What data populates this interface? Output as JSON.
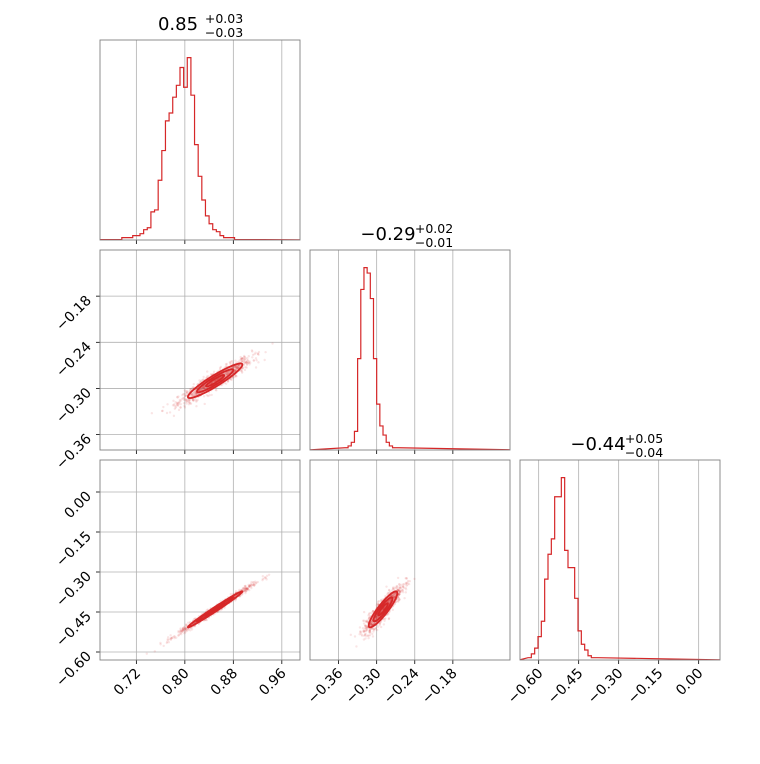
{
  "chart_data": {
    "type": "corner",
    "color": "#d62728",
    "grid": true,
    "panels": [
      {
        "id": "p00",
        "row": 0,
        "col": 0,
        "kind": "hist",
        "xlim": [
          0.66,
          0.99
        ],
        "title_value": "0.85",
        "title_plus": "+0.03",
        "title_minus": "−0.03",
        "bin_start": 0.66,
        "bin_width": 0.006,
        "counts": [
          0,
          0,
          0,
          0,
          0,
          0,
          1,
          1,
          1,
          2,
          2,
          3,
          5,
          6,
          14,
          15,
          30,
          45,
          60,
          64,
          72,
          78,
          87,
          77,
          92,
          73,
          48,
          32,
          20,
          12,
          8,
          5,
          4,
          2,
          1,
          1,
          1,
          0,
          0,
          0,
          0,
          0,
          0,
          0,
          0
        ]
      },
      {
        "id": "p11",
        "row": 1,
        "col": 1,
        "kind": "hist",
        "xlim": [
          -0.405,
          -0.09
        ],
        "title_value": "−0.29",
        "title_plus": "+0.02",
        "title_minus": "−0.01",
        "bin_start": -0.35,
        "bin_width": 0.005,
        "counts": [
          1,
          2,
          4,
          10,
          50,
          88,
          100,
          97,
          83,
          50,
          25,
          13,
          8,
          4,
          2,
          1,
          1
        ]
      },
      {
        "id": "p22",
        "row": 2,
        "col": 2,
        "kind": "hist",
        "xlim": [
          -0.67,
          0.08
        ],
        "title_value": "−0.44",
        "title_plus": "+0.05",
        "title_minus": "−0.04",
        "bin_start": -0.64,
        "bin_width": 0.0125,
        "counts": [
          1,
          3,
          6,
          12,
          20,
          42,
          55,
          63,
          85,
          85,
          95,
          57,
          48,
          48,
          32,
          15,
          8,
          5,
          2,
          1,
          1
        ]
      },
      {
        "id": "p10",
        "row": 1,
        "col": 0,
        "kind": "scatter",
        "xlim": [
          0.66,
          0.99
        ],
        "ylim": [
          -0.38,
          -0.12
        ],
        "yticks": [
          "−0.18",
          "−0.24",
          "−0.30",
          "−0.36"
        ],
        "ytick_values": [
          -0.18,
          -0.24,
          -0.3,
          -0.36
        ]
      },
      {
        "id": "p20",
        "row": 2,
        "col": 0,
        "kind": "scatter",
        "xlim": [
          0.66,
          0.99
        ],
        "ylim": [
          -0.63,
          0.12
        ],
        "xticks": [
          "0.72",
          "0.80",
          "0.88",
          "0.96"
        ],
        "xtick_values": [
          0.72,
          0.8,
          0.88,
          0.96
        ],
        "yticks": [
          "0.00",
          "−0.15",
          "−0.30",
          "−0.45",
          "−0.60"
        ],
        "ytick_values": [
          0.0,
          -0.15,
          -0.3,
          -0.45,
          -0.6
        ]
      },
      {
        "id": "p21",
        "row": 2,
        "col": 1,
        "kind": "scatter",
        "xlim": [
          -0.405,
          -0.09
        ],
        "ylim": [
          -0.63,
          0.12
        ],
        "xticks": [
          "−0.36",
          "−0.30",
          "−0.24",
          "−0.18"
        ],
        "xtick_values": [
          -0.36,
          -0.3,
          -0.24,
          -0.18
        ]
      }
    ],
    "hist_xticks_c2": {
      "labels": [
        "−0.60",
        "−0.45",
        "−0.30",
        "−0.15",
        "0.00"
      ],
      "values": [
        -0.6,
        -0.45,
        -0.3,
        -0.15,
        0.0
      ]
    },
    "correlations": {
      "p10": {
        "mean_x": 0.85,
        "mean_y": -0.29,
        "sd_x": 0.03,
        "sd_y": 0.015,
        "rho": 0.93
      },
      "p20": {
        "mean_x": 0.85,
        "mean_y": -0.44,
        "sd_x": 0.03,
        "sd_y": 0.045,
        "rho": 0.99
      },
      "p21": {
        "mean_x": -0.29,
        "mean_y": -0.44,
        "sd_x": 0.015,
        "sd_y": 0.045,
        "rho": 0.9
      }
    }
  }
}
